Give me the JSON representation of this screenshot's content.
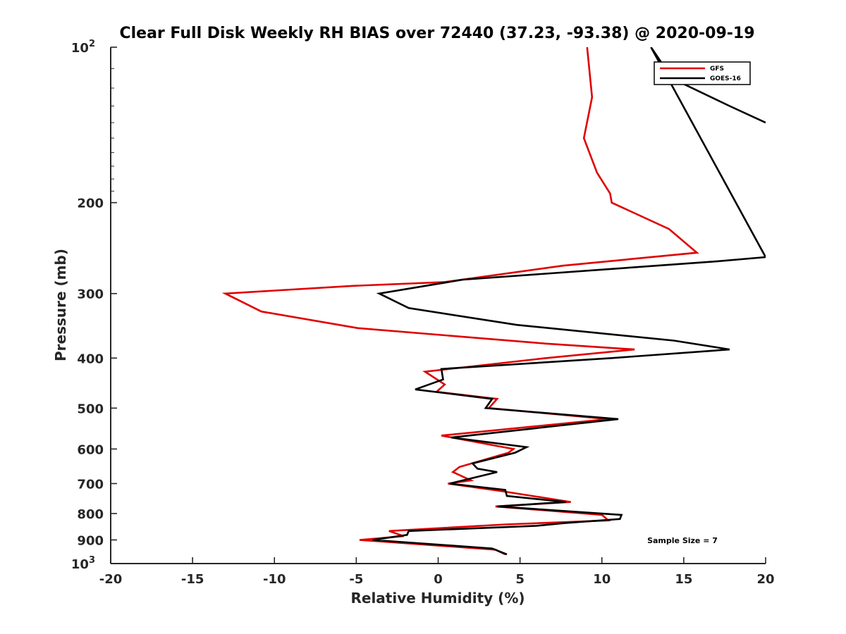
{
  "chart_data": {
    "type": "line",
    "title": "Clear Full Disk Weekly RH BIAS over 72440 (37.23, -93.38) @ 2020-09-19",
    "xlabel": "Relative Humidity (%)",
    "ylabel": "Pressure (mb)",
    "xlim": [
      -20,
      20
    ],
    "ylim": [
      1000,
      100
    ],
    "y_scale": "log",
    "grid": false,
    "legend_position": "top-right",
    "note": "Sample Size = 7",
    "x_ticks": [
      "-20",
      "-15",
      "-10",
      "-5",
      "0",
      "5",
      "10",
      "15",
      "20"
    ],
    "y_ticks": [
      {
        "value": 100,
        "label": "10",
        "exp": "2"
      },
      {
        "value": 200,
        "label": "200"
      },
      {
        "value": 300,
        "label": "300"
      },
      {
        "value": 400,
        "label": "400"
      },
      {
        "value": 500,
        "label": "500"
      },
      {
        "value": 600,
        "label": "600"
      },
      {
        "value": 700,
        "label": "700"
      },
      {
        "value": 800,
        "label": "800"
      },
      {
        "value": 900,
        "label": "900"
      },
      {
        "value": 1000,
        "label": "10",
        "exp": "3"
      }
    ],
    "series": [
      {
        "name": "GFS",
        "color": "#e00000",
        "points": [
          [
            9.1,
            100
          ],
          [
            9.4,
            125
          ],
          [
            8.9,
            150
          ],
          [
            9.7,
            175
          ],
          [
            10.5,
            192
          ],
          [
            10.6,
            200
          ],
          [
            14.1,
            225
          ],
          [
            15.8,
            250
          ],
          [
            7.6,
            265
          ],
          [
            0.4,
            285
          ],
          [
            -5.3,
            290
          ],
          [
            -13.0,
            300
          ],
          [
            -10.8,
            325
          ],
          [
            -4.9,
            350
          ],
          [
            6.6,
            375
          ],
          [
            12.0,
            385
          ],
          [
            6.6,
            400
          ],
          [
            -0.8,
            425
          ],
          [
            0.4,
            450
          ],
          [
            -0.1,
            465
          ],
          [
            3.6,
            480
          ],
          [
            3.1,
            500
          ],
          [
            10.4,
            525
          ],
          [
            0.2,
            565
          ],
          [
            4.6,
            600
          ],
          [
            4.3,
            610
          ],
          [
            1.3,
            650
          ],
          [
            0.9,
            665
          ],
          [
            2.0,
            690
          ],
          [
            0.6,
            700
          ],
          [
            4.0,
            725
          ],
          [
            8.1,
            760
          ],
          [
            3.5,
            775
          ],
          [
            10.0,
            805
          ],
          [
            10.4,
            825
          ],
          [
            4.1,
            840
          ],
          [
            -3.0,
            865
          ],
          [
            -2.1,
            885
          ],
          [
            -4.8,
            900
          ],
          [
            3.5,
            940
          ],
          [
            4.1,
            960
          ]
        ]
      },
      {
        "name": "GOES-16",
        "color": "#000000",
        "points": [
          [
            20.0,
            140
          ],
          [
            17.8,
            130
          ],
          [
            14.3,
            115
          ],
          [
            13.0,
            100
          ],
          [
            20.0,
            255
          ],
          [
            16.9,
            260
          ],
          [
            1.5,
            282
          ],
          [
            -3.6,
            300
          ],
          [
            -1.8,
            320
          ],
          [
            4.8,
            345
          ],
          [
            14.4,
            370
          ],
          [
            17.8,
            385
          ],
          [
            10.6,
            400
          ],
          [
            0.2,
            420
          ],
          [
            0.3,
            440
          ],
          [
            -1.4,
            460
          ],
          [
            3.3,
            480
          ],
          [
            2.9,
            500
          ],
          [
            11.0,
            525
          ],
          [
            0.8,
            570
          ],
          [
            5.4,
            595
          ],
          [
            4.7,
            610
          ],
          [
            2.1,
            640
          ],
          [
            2.4,
            655
          ],
          [
            3.6,
            665
          ],
          [
            0.7,
            700
          ],
          [
            4.1,
            720
          ],
          [
            4.2,
            740
          ],
          [
            7.8,
            760
          ],
          [
            3.6,
            775
          ],
          [
            11.2,
            805
          ],
          [
            11.1,
            820
          ],
          [
            7.7,
            835
          ],
          [
            6.0,
            845
          ],
          [
            -1.8,
            865
          ],
          [
            -1.9,
            880
          ],
          [
            -4.0,
            900
          ],
          [
            3.3,
            935
          ],
          [
            4.2,
            960
          ]
        ]
      }
    ]
  }
}
